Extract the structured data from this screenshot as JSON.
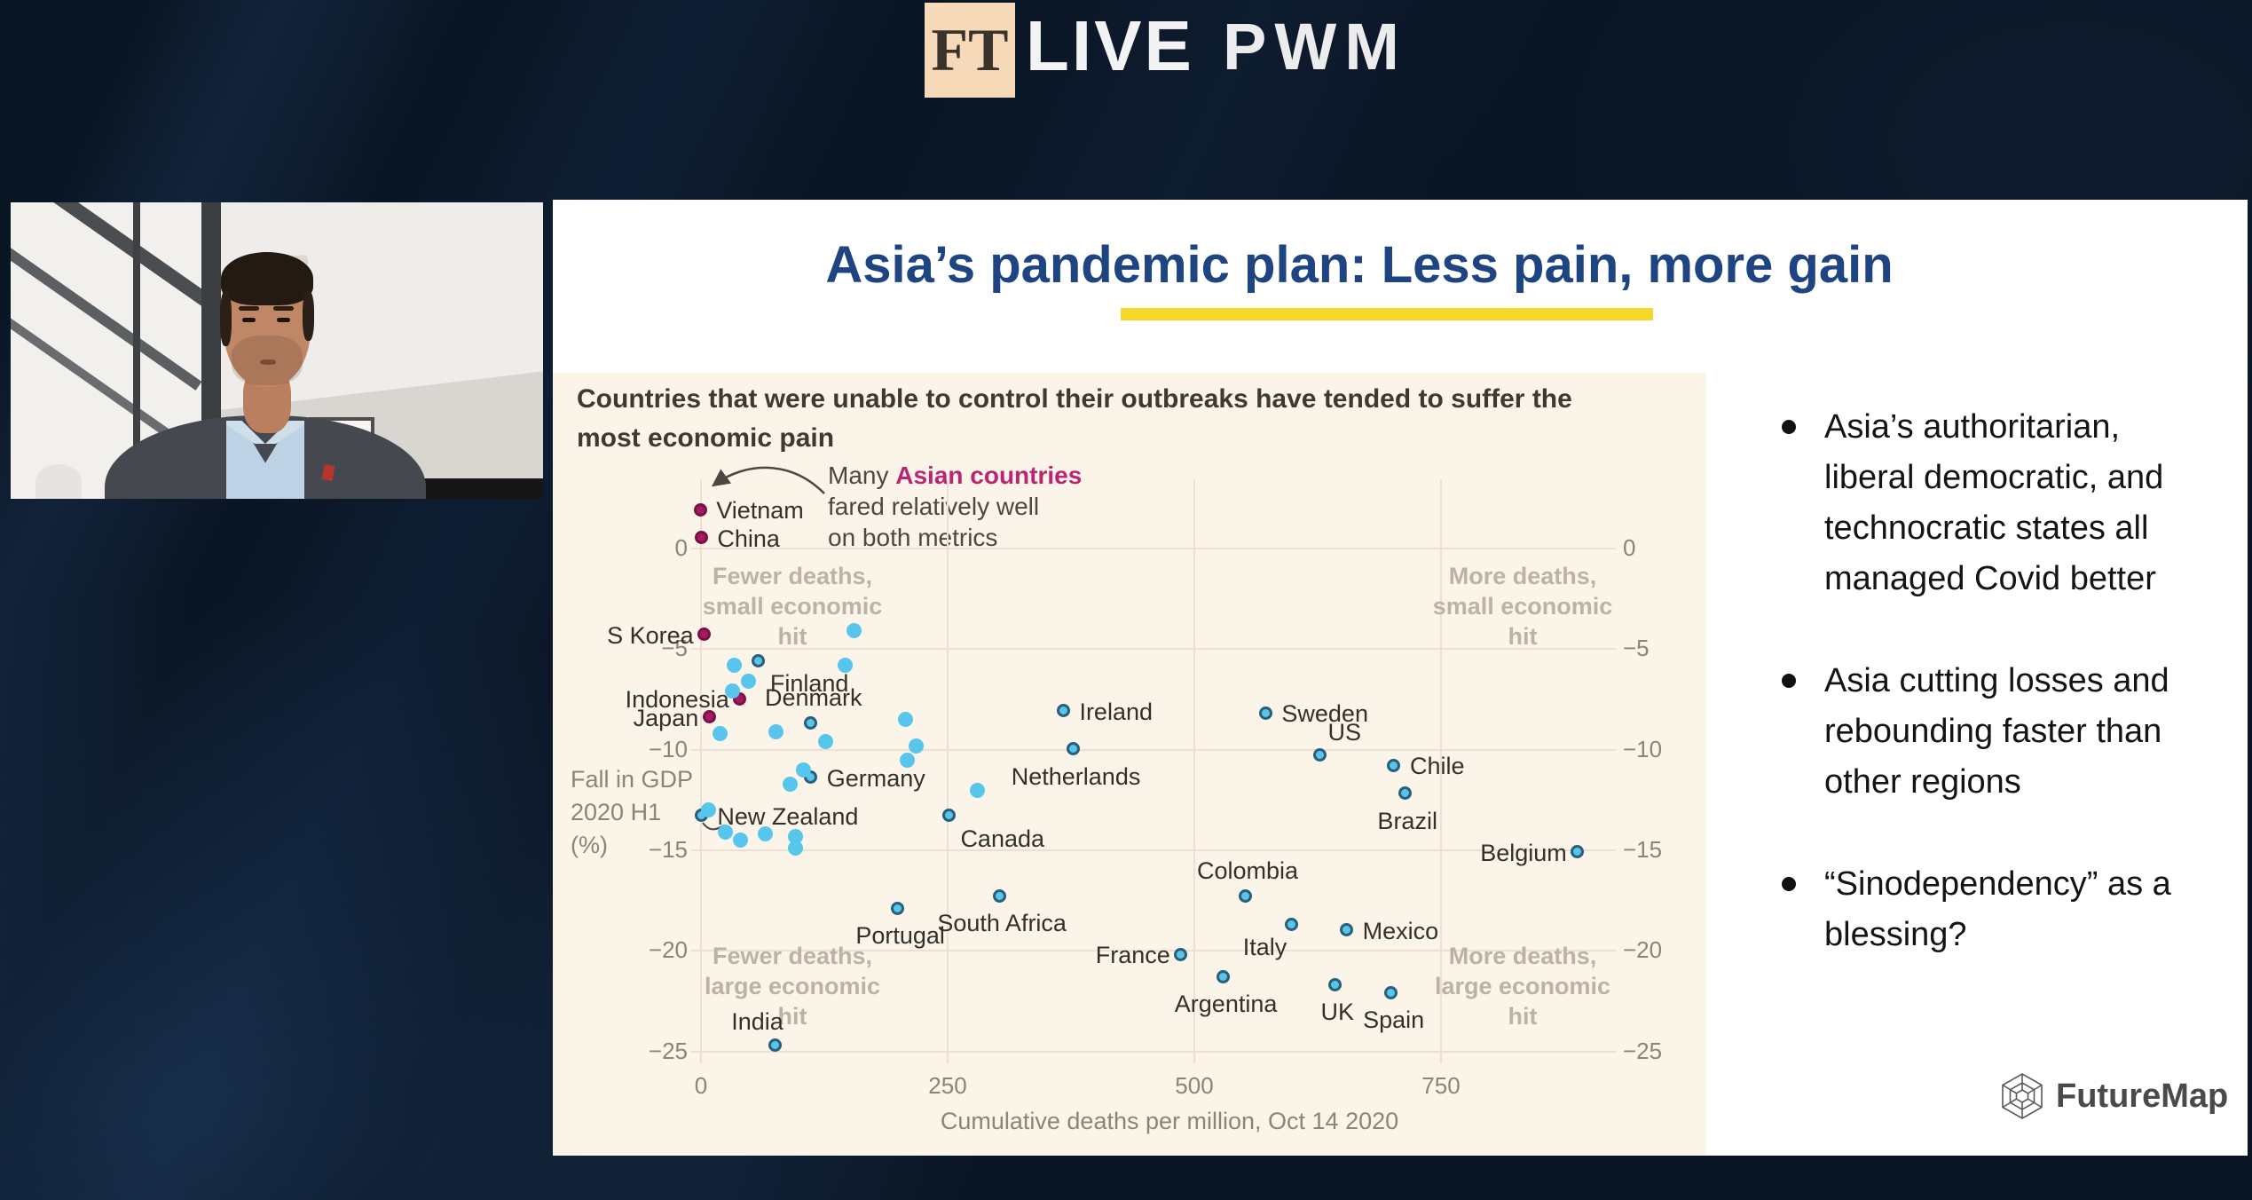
{
  "header": {
    "ft_logo_text": "FT",
    "live_label": "LIVE",
    "pwm_label": "PWM"
  },
  "slide": {
    "title": "Asia’s pandemic plan: Less pain, more gain",
    "title_color": "#1e4482",
    "underline_color": "#f7d829",
    "bullets": [
      {
        "lines": [
          "Asia’s authoritarian,",
          "liberal democratic, and",
          "technocratic states all",
          "managed Covid better"
        ]
      },
      {
        "lines": [
          "Asia cutting losses and",
          "rebounding faster than",
          "other regions"
        ]
      },
      {
        "lines": [
          "“Sinodependency” as a",
          "blessing?"
        ]
      }
    ],
    "footer_logo_label": "FutureMap"
  },
  "chart_data": {
    "type": "scatter",
    "title_lines": [
      "Countries that were unable to control their outbreaks have tended to suffer the",
      "most economic pain"
    ],
    "xlabel": "Cumulative deaths per million, Oct 14 2020",
    "ylabel_lines": [
      "Fall in GDP",
      "2020 H1",
      "(%)"
    ],
    "xlim": [
      -40,
      930
    ],
    "ylim": [
      -27.5,
      3.5
    ],
    "x_ticks": [
      0,
      250,
      500,
      750
    ],
    "y_ticks": [
      0,
      -5,
      -10,
      -15,
      -20,
      -25
    ],
    "grid": true,
    "background": "#fbf4e9",
    "quadrants": [
      {
        "pos": "top-left",
        "lines": [
          "Fewer deaths,",
          "small economic",
          "hit"
        ]
      },
      {
        "pos": "top-right",
        "lines": [
          "More deaths,",
          "small economic",
          "hit"
        ]
      },
      {
        "pos": "bottom-left",
        "lines": [
          "Fewer deaths,",
          "large economic",
          "hit"
        ]
      },
      {
        "pos": "bottom-right",
        "lines": [
          "More deaths,",
          "large economic",
          "hit"
        ]
      }
    ],
    "annotation": {
      "prefix": "Many ",
      "highlight": "Asian countries",
      "highlight_color": "#bb2574",
      "lines": [
        "fared relatively well",
        "on both metrics"
      ]
    },
    "series": [
      {
        "name": "Asian countries",
        "color": "#a11d60",
        "outline": "#7c1046",
        "points": [
          {
            "label": "Vietnam",
            "x": 2,
            "y": 1.8,
            "label_pos": "r"
          },
          {
            "label": "China",
            "x": 3,
            "y": 0.4,
            "label_pos": "r"
          },
          {
            "label": "S Korea",
            "x": 6,
            "y": -4.4,
            "label_pos": "l"
          },
          {
            "label": "Indonesia",
            "x": 42,
            "y": -7.6,
            "label_pos": "l"
          },
          {
            "label": "Japan",
            "x": 11,
            "y": -8.5,
            "label_pos": "l"
          }
        ]
      },
      {
        "name": "Other countries",
        "color": "#58c5ec",
        "outline": "#2a5f78",
        "points": [
          {
            "label": "Finland",
            "x": 61,
            "y": -5.7,
            "label_pos": "br"
          },
          {
            "label": "Denmark",
            "x": 114,
            "y": -8.8,
            "label_pos": "t"
          },
          {
            "label": "Germany",
            "x": 114,
            "y": -11.5,
            "label_pos": "r"
          },
          {
            "label": "New Zealand",
            "x": 3,
            "y": -13.4,
            "label_pos": "r"
          },
          {
            "label": "Canada",
            "x": 254,
            "y": -13.4,
            "label_pos": "br"
          },
          {
            "label": "Ireland",
            "x": 370,
            "y": -8.2,
            "label_pos": "r"
          },
          {
            "label": "Netherlands",
            "x": 380,
            "y": -10.1,
            "label_pos": "b"
          },
          {
            "label": "Sweden",
            "x": 575,
            "y": -8.3,
            "label_pos": "r"
          },
          {
            "label": "US",
            "x": 630,
            "y": -10.4,
            "label_pos": "tr"
          },
          {
            "label": "Chile",
            "x": 705,
            "y": -10.9,
            "label_pos": "r"
          },
          {
            "label": "Brazil",
            "x": 716,
            "y": -12.3,
            "label_pos": "b"
          },
          {
            "label": "Belgium",
            "x": 891,
            "y": -15.2,
            "label_pos": "l"
          },
          {
            "label": "Colombia",
            "x": 554,
            "y": -17.4,
            "label_pos": "t"
          },
          {
            "label": "Italy",
            "x": 601,
            "y": -18.8,
            "label_pos": "bl"
          },
          {
            "label": "Mexico",
            "x": 657,
            "y": -19.1,
            "label_pos": "r"
          },
          {
            "label": "France",
            "x": 489,
            "y": -20.3,
            "label_pos": "l"
          },
          {
            "label": "Argentina",
            "x": 532,
            "y": -21.4,
            "label_pos": "b"
          },
          {
            "label": "Portugal",
            "x": 202,
            "y": -18.0,
            "label_pos": "b"
          },
          {
            "label": "South Africa",
            "x": 305,
            "y": -17.4,
            "label_pos": "b"
          },
          {
            "label": "UK",
            "x": 645,
            "y": -21.8,
            "label_pos": "b"
          },
          {
            "label": "Spain",
            "x": 702,
            "y": -22.2,
            "label_pos": "b"
          },
          {
            "label": "India",
            "x": 78,
            "y": -24.8,
            "label_pos": "tl"
          }
        ]
      },
      {
        "name": "unlabeled",
        "color": "#58c5ec",
        "outline": null,
        "points": [
          {
            "x": 155,
            "y": -4.1
          },
          {
            "x": 34,
            "y": -5.8
          },
          {
            "x": 146,
            "y": -5.8
          },
          {
            "x": 48,
            "y": -6.6
          },
          {
            "x": 32,
            "y": -7.1
          },
          {
            "x": 207,
            "y": -8.5
          },
          {
            "x": 19,
            "y": -9.2
          },
          {
            "x": 76,
            "y": -9.1
          },
          {
            "x": 126,
            "y": -9.6
          },
          {
            "x": 218,
            "y": -9.8
          },
          {
            "x": 209,
            "y": -10.5
          },
          {
            "x": 104,
            "y": -11.0
          },
          {
            "x": 90,
            "y": -11.7
          },
          {
            "x": 280,
            "y": -12.0
          },
          {
            "x": 8,
            "y": -13.0
          },
          {
            "x": 25,
            "y": -14.1
          },
          {
            "x": 40,
            "y": -14.5
          },
          {
            "x": 65,
            "y": -14.2
          },
          {
            "x": 96,
            "y": -14.3
          },
          {
            "x": 96,
            "y": -14.9
          }
        ]
      }
    ]
  }
}
